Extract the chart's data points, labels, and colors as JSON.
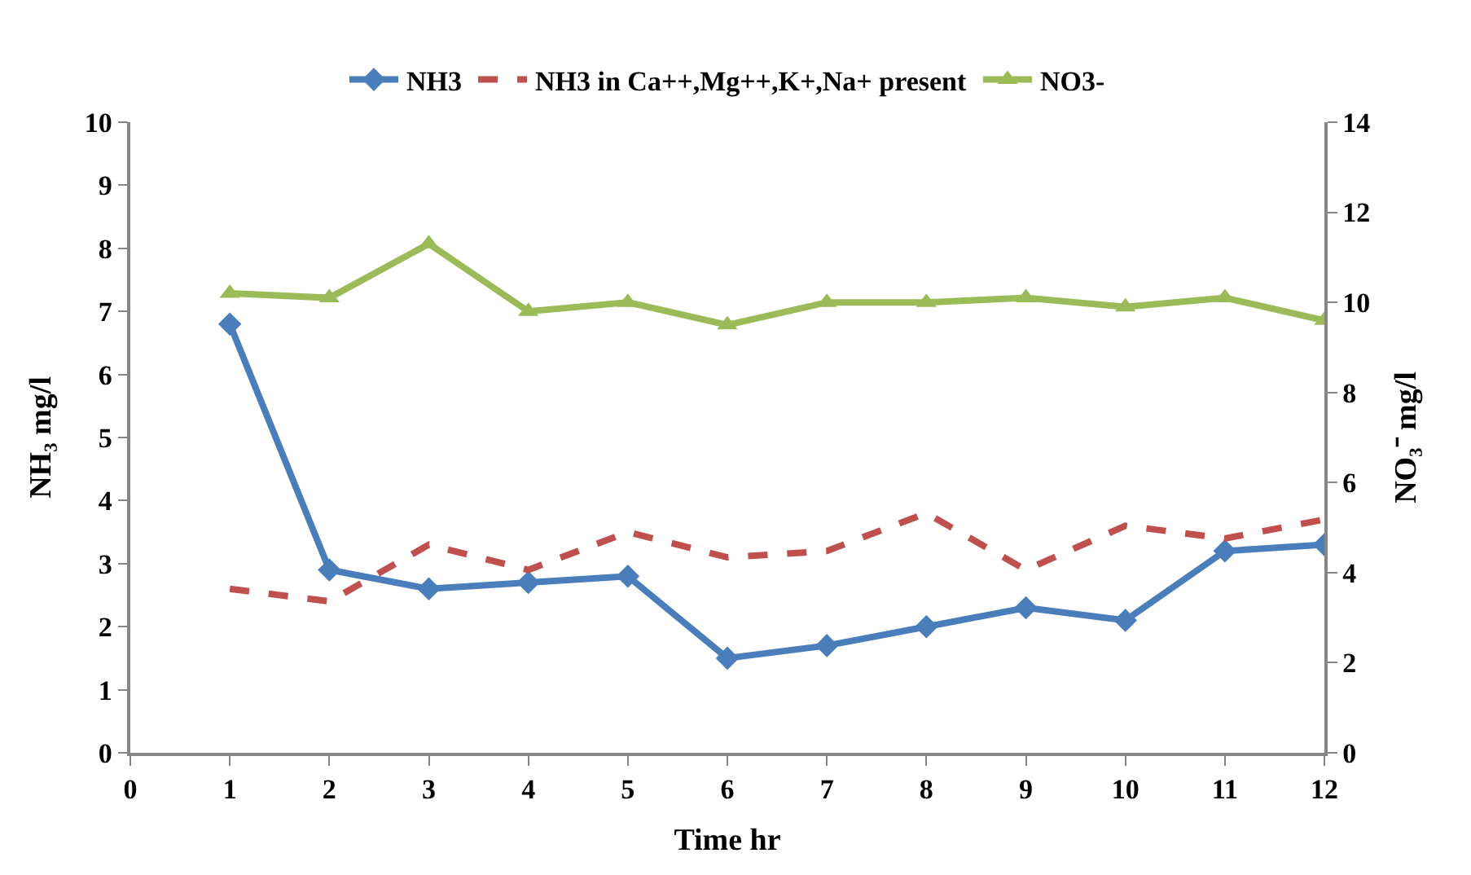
{
  "chart_data": {
    "type": "line",
    "xlabel": "Time hr",
    "ylabel": "NH₃ mg/l",
    "y2label": "NO₃⁻ mg/l",
    "x": [
      1,
      2,
      3,
      4,
      5,
      6,
      7,
      8,
      9,
      10,
      11,
      12
    ],
    "series": [
      {
        "name": "NH3",
        "color": "#4a7ebb",
        "marker": "diamond",
        "line_style": "solid",
        "values": [
          6.8,
          2.9,
          2.6,
          2.7,
          2.8,
          1.5,
          1.7,
          2.0,
          2.3,
          2.1,
          3.2,
          3.3
        ]
      },
      {
        "name": "NH3 in Ca++,Mg++,K+,Na+ present",
        "color": "#c0504d",
        "marker": "none",
        "line_style": "dashed",
        "values": [
          2.6,
          2.4,
          3.3,
          2.9,
          3.5,
          3.1,
          3.2,
          3.8,
          2.9,
          3.6,
          3.4,
          3.7
        ]
      },
      {
        "name": "NO3-",
        "color": "#9bbb59",
        "marker": "triangle",
        "line_style": "solid",
        "axis": "y2",
        "values": [
          10.2,
          10.1,
          11.3,
          9.8,
          10.0,
          9.5,
          10.0,
          10.0,
          10.1,
          9.9,
          10.1,
          9.6
        ]
      }
    ],
    "xlim": [
      0,
      12
    ],
    "xticks": [
      0,
      1,
      2,
      3,
      4,
      5,
      6,
      7,
      8,
      9,
      10,
      11,
      12
    ],
    "ylim": [
      0,
      10
    ],
    "yticks": [
      0,
      1,
      2,
      3,
      4,
      5,
      6,
      7,
      8,
      9,
      10
    ],
    "y2lim": [
      0,
      14
    ],
    "y2ticks": [
      0,
      2,
      4,
      6,
      8,
      10,
      12,
      14
    ],
    "legend": "top"
  }
}
